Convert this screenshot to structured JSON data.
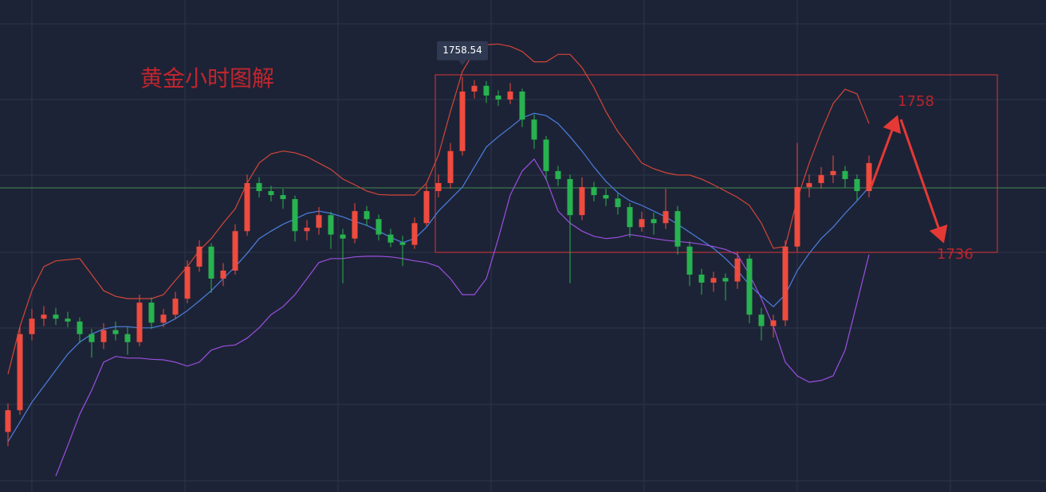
{
  "chart_data": {
    "type": "candlestick",
    "title": "黄金小时图解",
    "ylim": [
      1686,
      1772
    ],
    "up_color": "#ef4b3f",
    "down_color": "#27b34f",
    "open": [
      1696.5,
      1700.3,
      1713.6,
      1716.3,
      1717.0,
      1716.3,
      1715.8,
      1713.6,
      1712.2,
      1714.3,
      1713.6,
      1712.2,
      1719.1,
      1715.6,
      1717.0,
      1719.8,
      1725.4,
      1728.9,
      1723.3,
      1724.7,
      1731.6,
      1740.0,
      1738.6,
      1737.9,
      1737.2,
      1731.6,
      1732.2,
      1734.4,
      1731.0,
      1730.3,
      1735.1,
      1733.7,
      1731.0,
      1729.6,
      1729.2,
      1733.0,
      1738.6,
      1740.0,
      1745.6,
      1756.0,
      1757.0,
      1755.3,
      1754.6,
      1756.0,
      1751.1,
      1747.6,
      1742.1,
      1740.7,
      1734.4,
      1739.3,
      1737.9,
      1737.3,
      1735.8,
      1732.3,
      1733.7,
      1733.0,
      1735.1,
      1728.9,
      1724.0,
      1722.6,
      1723.4,
      1722.8,
      1726.8,
      1717.0,
      1715.0,
      1716.0,
      1728.9,
      1739.3,
      1740.0,
      1741.4,
      1742.1,
      1740.7,
      1738.6
    ],
    "high": [
      1701.5,
      1715.0,
      1718.0,
      1718.5,
      1718.2,
      1717.5,
      1716.5,
      1714.5,
      1715.5,
      1715.8,
      1714.8,
      1720.5,
      1720.0,
      1718.0,
      1721.0,
      1726.5,
      1730.0,
      1729.5,
      1726.0,
      1732.8,
      1741.5,
      1741.0,
      1739.5,
      1739.0,
      1737.8,
      1733.5,
      1735.8,
      1735.0,
      1732.0,
      1736.5,
      1736.0,
      1734.5,
      1732.0,
      1730.8,
      1734.0,
      1739.8,
      1741.5,
      1747.0,
      1758.54,
      1758.0,
      1757.8,
      1756.2,
      1757.5,
      1756.5,
      1752.0,
      1748.2,
      1743.0,
      1741.5,
      1741.0,
      1740.2,
      1739.0,
      1738.2,
      1736.5,
      1735.0,
      1734.8,
      1739.0,
      1736.0,
      1729.8,
      1725.0,
      1724.5,
      1724.2,
      1728.0,
      1727.5,
      1718.2,
      1717.0,
      1730.0,
      1747.0,
      1741.5,
      1742.8,
      1744.8,
      1743.0,
      1741.5,
      1744.8
    ],
    "low": [
      1694.0,
      1699.5,
      1712.5,
      1715.0,
      1715.2,
      1714.8,
      1712.0,
      1709.5,
      1711.0,
      1712.5,
      1710.0,
      1711.5,
      1714.5,
      1714.8,
      1716.2,
      1719.0,
      1724.5,
      1720.8,
      1722.0,
      1724.0,
      1730.8,
      1737.5,
      1736.8,
      1735.5,
      1729.8,
      1730.0,
      1731.0,
      1728.5,
      1722.5,
      1729.5,
      1732.5,
      1730.0,
      1728.8,
      1725.5,
      1728.5,
      1732.5,
      1737.5,
      1739.0,
      1744.8,
      1754.8,
      1754.0,
      1753.5,
      1753.8,
      1749.8,
      1746.0,
      1740.5,
      1739.5,
      1722.5,
      1733.5,
      1736.8,
      1736.0,
      1734.5,
      1730.5,
      1731.5,
      1731.0,
      1732.0,
      1727.5,
      1722.0,
      1720.5,
      1721.0,
      1719.5,
      1721.5,
      1715.5,
      1712.5,
      1713.0,
      1715.0,
      1728.0,
      1737.5,
      1739.0,
      1740.0,
      1739.2,
      1737.0,
      1737.5
    ],
    "close": [
      1700.3,
      1713.6,
      1716.3,
      1717.0,
      1716.3,
      1715.8,
      1713.6,
      1712.2,
      1714.3,
      1713.6,
      1712.2,
      1719.1,
      1715.6,
      1717.0,
      1719.8,
      1725.4,
      1728.9,
      1723.3,
      1724.7,
      1731.6,
      1740.0,
      1738.6,
      1737.9,
      1737.2,
      1731.6,
      1732.2,
      1734.4,
      1731.0,
      1730.3,
      1735.1,
      1733.7,
      1731.0,
      1729.6,
      1729.2,
      1733.0,
      1738.6,
      1740.0,
      1745.6,
      1756.0,
      1757.0,
      1755.3,
      1754.6,
      1756.0,
      1751.1,
      1747.6,
      1742.1,
      1740.7,
      1734.4,
      1739.3,
      1737.9,
      1737.3,
      1735.8,
      1732.3,
      1733.7,
      1733.0,
      1735.1,
      1728.9,
      1724.0,
      1722.6,
      1723.4,
      1722.8,
      1726.8,
      1717.0,
      1715.0,
      1716.0,
      1728.9,
      1739.3,
      1740.0,
      1741.4,
      1742.1,
      1740.7,
      1738.6,
      1743.5
    ],
    "bands": {
      "upper": {
        "color": "#d2463a",
        "values": [
          1706.6,
          1714.9,
          1721.2,
          1725.4,
          1726.4,
          1726.6,
          1726.8,
          1724.0,
          1721.2,
          1720.2,
          1719.8,
          1719.8,
          1719.8,
          1720.5,
          1723.0,
          1725.4,
          1728.2,
          1730.3,
          1733.0,
          1735.5,
          1740.0,
          1743.5,
          1745.1,
          1745.6,
          1745.3,
          1744.6,
          1743.5,
          1742.4,
          1740.7,
          1739.7,
          1738.6,
          1738.0,
          1737.9,
          1737.9,
          1737.9,
          1740.0,
          1744.9,
          1752.5,
          1759.5,
          1763.0,
          1764.2,
          1764.3,
          1763.9,
          1763.0,
          1761.2,
          1761.2,
          1762.5,
          1762.5,
          1760.2,
          1756.7,
          1752.5,
          1749.0,
          1746.3,
          1743.5,
          1742.5,
          1741.8,
          1741.4,
          1741.4,
          1740.7,
          1739.7,
          1738.6,
          1737.5,
          1736.1,
          1733.0,
          1728.6,
          1728.9,
          1737.2,
          1743.5,
          1749.0,
          1753.9,
          1756.4,
          1755.6,
          1750.4
        ]
      },
      "middle": {
        "color": "#4a7fe0",
        "values": [
          1694.8,
          1698.2,
          1701.7,
          1704.5,
          1707.3,
          1710.1,
          1712.2,
          1713.6,
          1714.5,
          1714.9,
          1714.9,
          1714.7,
          1714.7,
          1715.2,
          1716.3,
          1717.7,
          1719.4,
          1721.2,
          1723.3,
          1725.4,
          1727.7,
          1730.3,
          1731.6,
          1732.8,
          1733.7,
          1734.7,
          1735.1,
          1734.7,
          1734.1,
          1733.3,
          1732.6,
          1731.6,
          1730.5,
          1729.6,
          1730.3,
          1732.3,
          1735.1,
          1737.2,
          1739.3,
          1742.8,
          1746.3,
          1748.1,
          1749.7,
          1751.4,
          1752.2,
          1751.8,
          1750.4,
          1748.1,
          1745.6,
          1742.8,
          1740.3,
          1738.3,
          1736.9,
          1736.1,
          1735.1,
          1734.1,
          1732.8,
          1731.4,
          1730.0,
          1728.6,
          1726.8,
          1724.7,
          1722.2,
          1720.2,
          1718.4,
          1720.5,
          1724.7,
          1727.7,
          1730.3,
          1732.3,
          1734.7,
          1736.9,
          1739.3
        ]
      },
      "lower": {
        "color": "#9a4fe0",
        "values": [
          null,
          null,
          null,
          null,
          1688.8,
          1694.1,
          1699.6,
          1703.8,
          1708.7,
          1709.7,
          1709.4,
          1709.4,
          1709.2,
          1709.1,
          1708.7,
          1708.0,
          1708.7,
          1710.8,
          1711.5,
          1711.7,
          1712.9,
          1714.7,
          1717.0,
          1718.4,
          1720.5,
          1723.3,
          1726.1,
          1726.8,
          1726.8,
          1727.1,
          1727.2,
          1727.2,
          1727.1,
          1726.8,
          1726.4,
          1726.1,
          1725.4,
          1723.3,
          1720.5,
          1720.5,
          1723.3,
          1730.3,
          1737.9,
          1742.1,
          1744.2,
          1740.7,
          1735.1,
          1733.0,
          1731.6,
          1730.7,
          1730.3,
          1730.5,
          1731.0,
          1730.7,
          1730.3,
          1730.0,
          1729.8,
          1729.6,
          1729.3,
          1728.9,
          1728.4,
          1727.5,
          1724.0,
          1719.8,
          1715.0,
          1708.7,
          1706.3,
          1705.2,
          1705.5,
          1706.3,
          1710.8,
          1719.1,
          1727.5
        ]
      }
    },
    "annotations": [
      {
        "text": "1758",
        "color": "#b8242e"
      },
      {
        "text": "1736",
        "color": "#b8242e"
      }
    ]
  }
}
